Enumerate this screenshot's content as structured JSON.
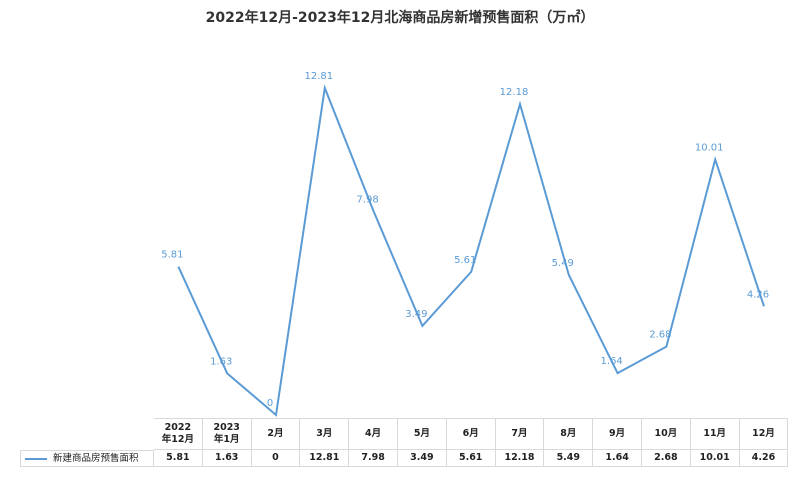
{
  "chart_data": {
    "type": "line",
    "title": "2022年12月-2023年12月北海商品房新增预售面积（万㎡）",
    "categories": [
      "2022年12月",
      "2023年1月",
      "2月",
      "3月",
      "4月",
      "5月",
      "6月",
      "7月",
      "8月",
      "9月",
      "10月",
      "11月",
      "12月"
    ],
    "series": [
      {
        "name": "新建商品房预售面积",
        "color": "#5b9bd5",
        "values": [
          5.81,
          1.63,
          0,
          12.81,
          7.98,
          3.49,
          5.61,
          12.18,
          5.49,
          1.64,
          2.68,
          10.01,
          4.26
        ]
      }
    ]
  }
}
